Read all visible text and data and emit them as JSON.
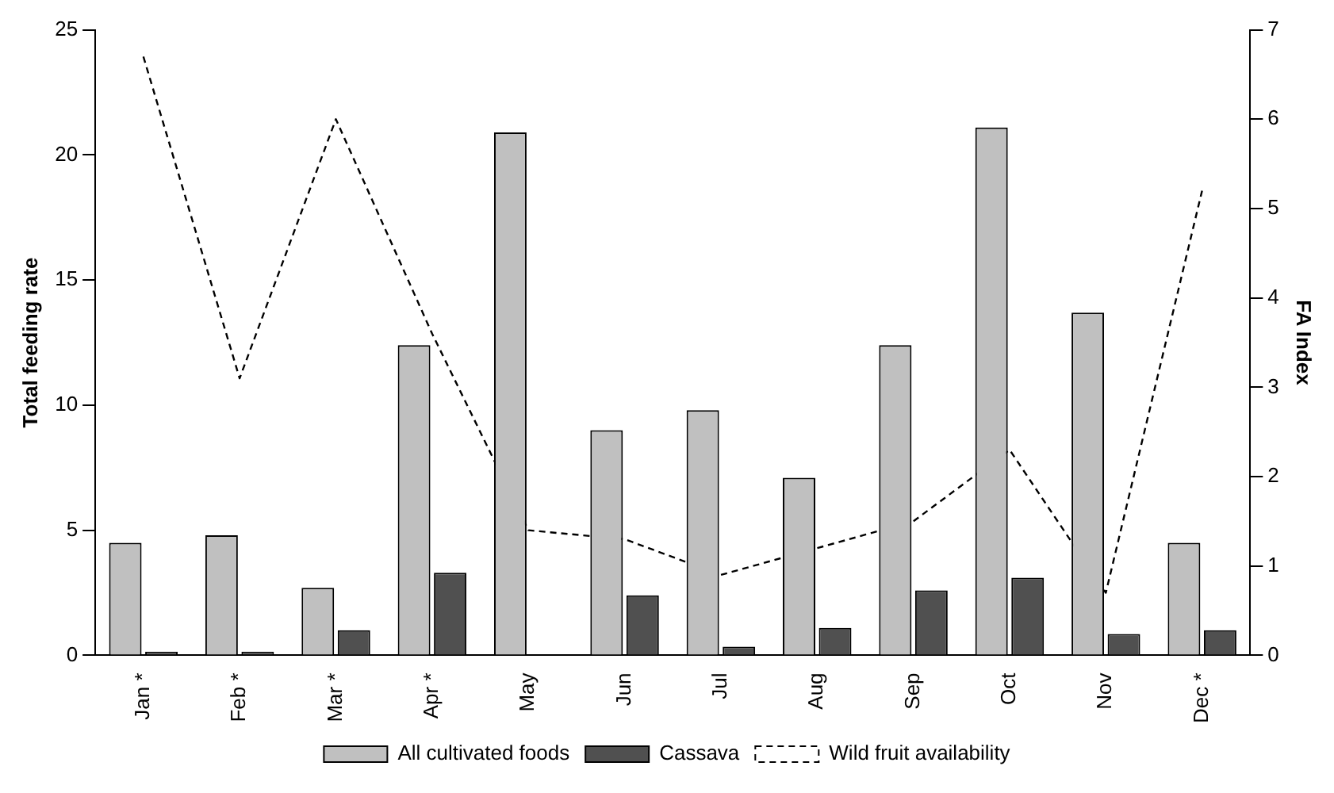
{
  "chart_data": {
    "type": "bar",
    "categories": [
      "Jan *",
      "Feb *",
      "Mar *",
      "Apr *",
      "May",
      "Jun",
      "Jul",
      "Aug",
      "Sep",
      "Oct",
      "Nov",
      "Dec *"
    ],
    "ylabel": "Total feeding rate",
    "y2label": "FA Index",
    "ylim": [
      0,
      25
    ],
    "yticks": [
      0,
      5,
      10,
      15,
      20,
      25
    ],
    "y2lim": [
      0,
      7
    ],
    "y2ticks": [
      0,
      1,
      2,
      3,
      4,
      5,
      6,
      7
    ],
    "grid": false,
    "legend": "bottom",
    "marker": "none",
    "series": [
      {
        "name": "All cultivated foods",
        "color": "#c0c0c0",
        "values": [
          4.5,
          4.8,
          2.7,
          12.4,
          20.9,
          9.0,
          9.8,
          7.1,
          12.4,
          21.1,
          13.7,
          4.5
        ]
      },
      {
        "name": "Cassava",
        "color": "#505050",
        "values": [
          0.15,
          0.15,
          1.0,
          3.3,
          0,
          2.4,
          0.35,
          1.1,
          2.6,
          3.1,
          0.85,
          1.0
        ]
      },
      {
        "name": "Wild fruit availability",
        "type": "line",
        "axis": "y2",
        "line_style": "dashed",
        "color": "#000000",
        "values": [
          6.7,
          3.1,
          6.0,
          3.6,
          1.4,
          1.3,
          0.9,
          1.2,
          1.5,
          2.3,
          0.7,
          5.2
        ]
      }
    ]
  }
}
